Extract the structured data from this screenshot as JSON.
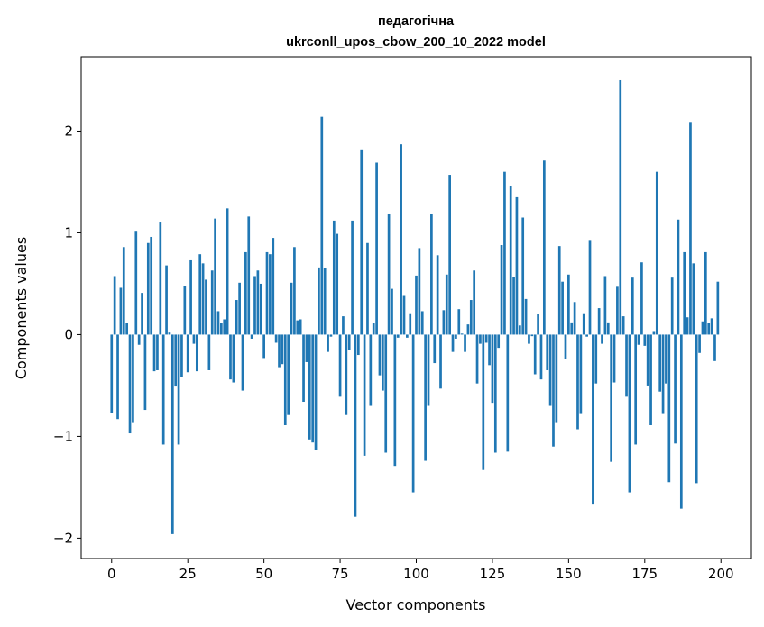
{
  "chart_data": {
    "type": "bar",
    "title_lines": [
      "педагогічна",
      "ukrconll_upos_cbow_200_10_2022 model"
    ],
    "xlabel": "Vector components",
    "ylabel": "Components values",
    "xlim": [
      -10,
      210
    ],
    "ylim": [
      -2.2,
      2.73
    ],
    "xticks": [
      0,
      25,
      50,
      75,
      100,
      125,
      150,
      175,
      200
    ],
    "xtick_labels": [
      "0",
      "25",
      "50",
      "75",
      "100",
      "125",
      "150",
      "175",
      "200"
    ],
    "yticks": [
      -2,
      -1,
      0,
      1,
      2
    ],
    "ytick_labels": [
      "−2",
      "−1",
      "0",
      "1",
      "2"
    ],
    "grid": false,
    "bar_color": "#1f77b4",
    "values": [
      -0.77,
      0.575,
      -0.83,
      0.46,
      0.86,
      0.115,
      -0.97,
      -0.86,
      1.02,
      -0.1,
      0.41,
      -0.74,
      0.9,
      0.96,
      -0.36,
      -0.35,
      1.11,
      -1.08,
      0.68,
      0.02,
      -1.96,
      -0.51,
      -1.08,
      -0.42,
      0.48,
      -0.37,
      0.73,
      -0.09,
      -0.36,
      0.79,
      0.7,
      0.54,
      -0.35,
      0.63,
      1.14,
      0.23,
      0.11,
      0.15,
      1.24,
      -0.44,
      -0.47,
      0.34,
      0.51,
      -0.55,
      0.81,
      1.16,
      -0.04,
      0.575,
      0.63,
      0.5,
      -0.23,
      0.81,
      0.79,
      0.95,
      -0.08,
      -0.32,
      -0.29,
      -0.89,
      -0.79,
      0.51,
      0.86,
      0.14,
      0.15,
      -0.66,
      -0.27,
      -1.03,
      -1.06,
      -1.13,
      0.66,
      2.14,
      0.65,
      -0.17,
      -0.02,
      1.12,
      0.99,
      -0.61,
      0.18,
      -0.79,
      -0.15,
      1.12,
      -1.79,
      -0.2,
      1.82,
      -1.19,
      0.9,
      -0.7,
      0.11,
      1.69,
      -0.4,
      -0.55,
      -1.16,
      1.19,
      0.45,
      -1.29,
      -0.03,
      1.87,
      0.38,
      -0.03,
      0.21,
      -1.55,
      0.58,
      0.85,
      0.23,
      -1.24,
      -0.7,
      1.19,
      -0.28,
      0.78,
      -0.53,
      0.24,
      0.59,
      1.57,
      -0.17,
      -0.04,
      0.25,
      0.01,
      -0.17,
      0.1,
      0.34,
      0.63,
      -0.48,
      -0.09,
      -1.33,
      -0.08,
      -0.3,
      -0.67,
      -1.16,
      -0.13,
      0.88,
      1.6,
      -1.15,
      1.46,
      0.57,
      1.35,
      0.09,
      1.15,
      0.35,
      -0.09,
      -0.015,
      -0.39,
      0.2,
      -0.44,
      1.71,
      -0.35,
      -0.7,
      -1.1,
      -0.86,
      0.87,
      0.52,
      -0.24,
      0.59,
      0.12,
      0.32,
      -0.93,
      -0.78,
      0.21,
      -0.02,
      0.93,
      -1.67,
      -0.48,
      0.26,
      -0.09,
      0.575,
      0.12,
      -1.25,
      -0.47,
      0.47,
      2.5,
      0.18,
      -0.61,
      -1.55,
      0.56,
      -1.08,
      -0.1,
      0.71,
      -0.11,
      -0.5,
      -0.89,
      0.035,
      1.6,
      -0.56,
      -0.78,
      -0.48,
      -1.45,
      0.56,
      -1.07,
      1.13,
      -1.71,
      0.81,
      0.17,
      2.09,
      0.7,
      -1.46,
      -0.18,
      0.13,
      0.81,
      0.115,
      0.16,
      -0.26,
      0.52
    ]
  }
}
